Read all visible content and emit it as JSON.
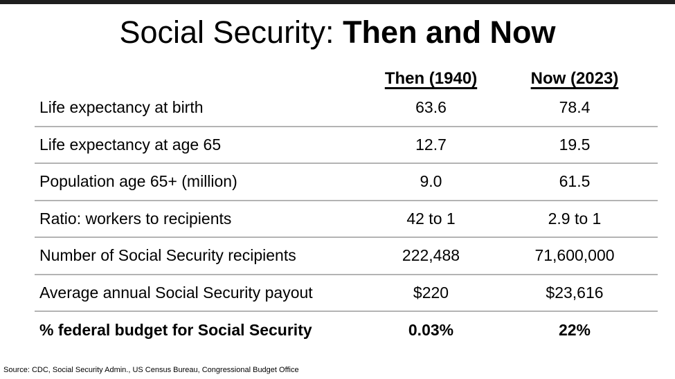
{
  "title": {
    "regular": "Social Security: ",
    "bold": "Then and Now"
  },
  "table": {
    "col_then": "Then (1940)",
    "col_now": "Now (2023)",
    "rows": [
      {
        "label": "Life expectancy at birth",
        "then": "63.6",
        "now": "78.4"
      },
      {
        "label": "Life expectancy at age 65",
        "then": "12.7",
        "now": "19.5"
      },
      {
        "label": "Population age 65+ (million)",
        "then": "9.0",
        "now": "61.5"
      },
      {
        "label": "Ratio: workers to recipients",
        "then": "42 to 1",
        "now": "2.9 to 1"
      },
      {
        "label": "Number of Social Security recipients",
        "then": "222,488",
        "now": "71,600,000"
      },
      {
        "label": "Average annual Social Security payout",
        "then": "$220",
        "now": "$23,616"
      },
      {
        "label": "% federal budget for Social Security",
        "then": "0.03%",
        "now": "22%"
      }
    ]
  },
  "footer": {
    "source": "Source: CDC, Social Security Admin., US Census Bureau, Congressional Budget Office"
  },
  "colors": {
    "accent_bar": "#1f1f1f",
    "separator": "#b3b3b3",
    "text": "#000000",
    "background": "#ffffff"
  }
}
